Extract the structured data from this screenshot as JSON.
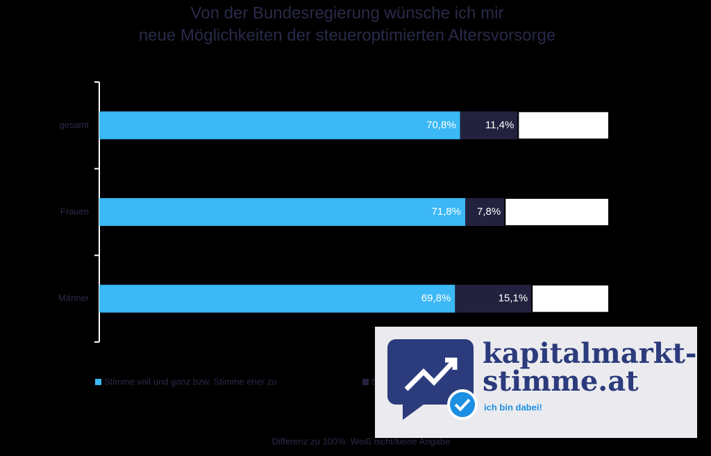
{
  "chart_data": {
    "type": "stacked-barh",
    "title": [
      "Von der Bundesregierung wünsche ich mir",
      "neue Möglichkeiten der steueroptimierten Altersvorsorge"
    ],
    "categories": [
      "gesamt",
      "Frauen",
      "Männer"
    ],
    "xlim": [
      0,
      100
    ],
    "series": [
      {
        "name": "Stimme voll und ganz bzw. Stimme eher zu",
        "color": "#3bb8f5",
        "values": [
          70.8,
          71.8,
          69.8
        ],
        "value_labels": [
          "70,8%",
          "71,8%",
          "69,8%"
        ]
      },
      {
        "name": "Stimme gar nicht bzw. eher nicht zu",
        "color": "#22223f",
        "values": [
          11.4,
          7.8,
          15.1
        ],
        "value_labels": [
          "11,4%",
          "7,8%",
          "15,1%"
        ]
      },
      {
        "color": "#ffffff",
        "values": [
          17.8,
          20.4,
          15.1
        ]
      }
    ],
    "note": "Differenz zu 100%: Weiß nicht/keine Angabe"
  },
  "logo": {
    "line1": "kapitalmarkt-",
    "line2": "stimme.at",
    "tagline": "ich bin dabei!"
  }
}
